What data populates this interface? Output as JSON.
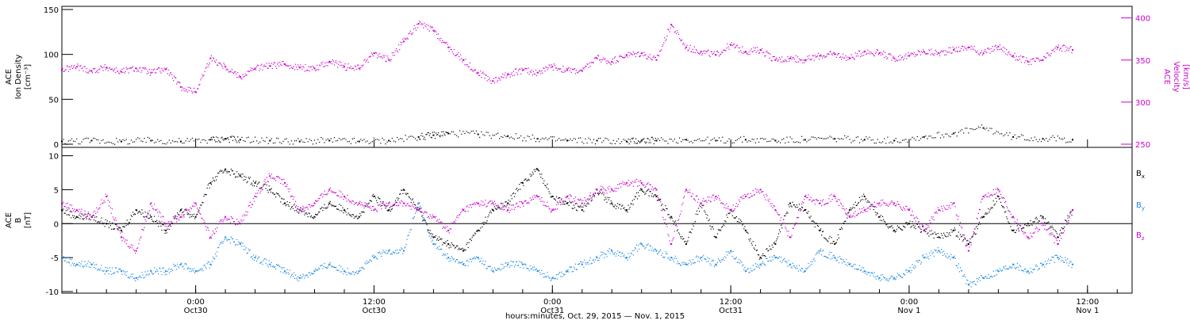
{
  "colors": {
    "axis": "#000000",
    "density": "#000000",
    "velocity": "#cc00cc",
    "bx": "#000000",
    "by": "#1e88e5",
    "bz": "#cc00cc"
  },
  "chart_data": [
    {
      "panel": "top",
      "type": "scatter",
      "time_range": [
        "2015-10-29 15:00",
        "2015-11-01 15:00"
      ],
      "left_axis": {
        "label_lines": [
          "ACE",
          "Ion Density",
          "[cm⁻³]"
        ],
        "ylim": [
          0,
          150
        ],
        "ticks": [
          "0",
          "50",
          "100",
          "150"
        ]
      },
      "right_axis": {
        "label_lines": [
          "ACE",
          "Velocity",
          "[km/s]"
        ],
        "ylim": [
          250,
          410
        ],
        "ticks": [
          "250",
          "300",
          "350",
          "400"
        ]
      },
      "series": [
        {
          "key": "density",
          "axis": "left",
          "x_hours": [
            0,
            2,
            4,
            6,
            8,
            10,
            11,
            12,
            14,
            16,
            18,
            20,
            22,
            24,
            25,
            26,
            28,
            30,
            32,
            34,
            36,
            38,
            39,
            40,
            42,
            44,
            46,
            48,
            50,
            52,
            54,
            56,
            58,
            60,
            62,
            64,
            66,
            68
          ],
          "values": [
            3,
            4,
            3,
            4,
            3,
            5,
            6,
            5,
            4,
            3,
            4,
            3,
            4,
            8,
            10,
            12,
            11,
            9,
            6,
            4,
            4,
            3,
            4,
            4,
            5,
            4,
            5,
            4,
            5,
            6,
            5,
            4,
            8,
            12,
            18,
            8,
            6,
            5
          ]
        },
        {
          "key": "velocity",
          "axis": "right",
          "x_hours": [
            0,
            1,
            2,
            3,
            4,
            5,
            6,
            7,
            8,
            9,
            10,
            11,
            12,
            13,
            14,
            15,
            16,
            17,
            18,
            19,
            20,
            21,
            22,
            23,
            24,
            25,
            26,
            27,
            28,
            29,
            30,
            31,
            32,
            33,
            34,
            35,
            36,
            37,
            38,
            39,
            40,
            41,
            42,
            43,
            44,
            45,
            46,
            47,
            48,
            49,
            50,
            51,
            52,
            53,
            54,
            55,
            56,
            57,
            58,
            59,
            60,
            61,
            62,
            63,
            64,
            65,
            66,
            67,
            68
          ],
          "values": [
            338,
            342,
            337,
            341,
            336,
            340,
            335,
            339,
            318,
            312,
            352,
            342,
            330,
            340,
            343,
            345,
            341,
            340,
            348,
            342,
            340,
            358,
            350,
            372,
            393,
            385,
            365,
            350,
            335,
            325,
            333,
            338,
            335,
            342,
            338,
            337,
            352,
            348,
            356,
            358,
            350,
            392,
            365,
            360,
            356,
            368,
            360,
            362,
            350,
            352,
            350,
            355,
            357,
            352,
            360,
            358,
            352,
            355,
            360,
            358,
            362,
            365,
            358,
            366,
            355,
            348,
            350,
            365,
            362
          ]
        }
      ]
    },
    {
      "panel": "bottom",
      "type": "scatter",
      "left_axis": {
        "label_lines": [
          "ACE",
          "B",
          "[nT]"
        ],
        "ylim": [
          -10,
          11
        ],
        "ticks": [
          "-10",
          "-5",
          "0",
          "5",
          "10"
        ]
      },
      "x_ticks": [
        {
          "hours": 9,
          "time": "0:00",
          "date": "Oct30"
        },
        {
          "hours": 21,
          "time": "12:00",
          "date": "Oct30"
        },
        {
          "hours": 33,
          "time": "0:00",
          "date": "Oct31"
        },
        {
          "hours": 45,
          "time": "12:00",
          "date": "Oct31"
        },
        {
          "hours": 57,
          "time": "0:00",
          "date": "Nov 1"
        },
        {
          "hours": 69,
          "time": "12:00",
          "date": "Nov 1"
        }
      ],
      "xlabel": "hours:minutes, Oct. 29, 2015 — Nov. 1, 2015",
      "legend": [
        "B",
        "B",
        "B"
      ],
      "legend_subscripts": [
        "x",
        "y",
        "z"
      ],
      "series": [
        {
          "key": "bx",
          "x_hours": [
            0,
            1,
            2,
            3,
            4,
            5,
            6,
            7,
            8,
            9,
            10,
            11,
            12,
            13,
            14,
            15,
            16,
            17,
            18,
            19,
            20,
            21,
            22,
            23,
            24,
            25,
            26,
            27,
            28,
            29,
            30,
            31,
            32,
            33,
            34,
            35,
            36,
            37,
            38,
            39,
            40,
            41,
            42,
            43,
            44,
            45,
            46,
            47,
            48,
            49,
            50,
            51,
            52,
            53,
            54,
            55,
            56,
            57,
            58,
            59,
            60,
            61,
            62,
            63,
            64,
            65,
            66,
            67,
            68
          ],
          "values": [
            2,
            1,
            1,
            0,
            -1,
            2,
            1,
            -1,
            2,
            1,
            6,
            8,
            7,
            6,
            5,
            3,
            2,
            1,
            3,
            2,
            1,
            4,
            2,
            5,
            2,
            -2,
            -3,
            -4,
            -1,
            2,
            3,
            6,
            8,
            4,
            3,
            2,
            5,
            3,
            2,
            5,
            4,
            1,
            -3,
            3,
            -2,
            2,
            -1,
            -5,
            -3,
            3,
            2,
            -1,
            -3,
            2,
            4,
            1,
            -1,
            0,
            -1,
            -2,
            -1,
            -3,
            1,
            4,
            -1,
            0,
            1,
            -2,
            2
          ]
        },
        {
          "key": "by",
          "x_hours": [
            0,
            1,
            2,
            3,
            4,
            5,
            6,
            7,
            8,
            9,
            10,
            11,
            12,
            13,
            14,
            15,
            16,
            17,
            18,
            19,
            20,
            21,
            22,
            23,
            24,
            25,
            26,
            27,
            28,
            29,
            30,
            31,
            32,
            33,
            34,
            35,
            36,
            37,
            38,
            39,
            40,
            41,
            42,
            43,
            44,
            45,
            46,
            47,
            48,
            49,
            50,
            51,
            52,
            53,
            54,
            55,
            56,
            57,
            58,
            59,
            60,
            61,
            62,
            63,
            64,
            65,
            66,
            67,
            68
          ],
          "values": [
            -5,
            -6,
            -6,
            -7,
            -7,
            -8,
            -7,
            -7,
            -6,
            -7,
            -6,
            -2,
            -3,
            -5,
            -6,
            -7,
            -8,
            -7,
            -6,
            -7,
            -7,
            -5,
            -4,
            -4,
            3,
            -3,
            -5,
            -6,
            -5,
            -7,
            -6,
            -6,
            -7,
            -8,
            -7,
            -6,
            -5,
            -4,
            -5,
            -3,
            -4,
            -5,
            -6,
            -5,
            -6,
            -4,
            -7,
            -6,
            -5,
            -6,
            -7,
            -4,
            -5,
            -6,
            -7,
            -8,
            -8,
            -7,
            -5,
            -4,
            -5,
            -9,
            -8,
            -7,
            -6,
            -7,
            -6,
            -5,
            -6
          ]
        },
        {
          "key": "bz",
          "x_hours": [
            0,
            1,
            2,
            3,
            4,
            5,
            6,
            7,
            8,
            9,
            10,
            11,
            12,
            13,
            14,
            15,
            16,
            17,
            18,
            19,
            20,
            21,
            22,
            23,
            24,
            25,
            26,
            27,
            28,
            29,
            30,
            31,
            32,
            33,
            34,
            35,
            36,
            37,
            38,
            39,
            40,
            41,
            42,
            43,
            44,
            45,
            46,
            47,
            48,
            49,
            50,
            51,
            52,
            53,
            54,
            55,
            56,
            57,
            58,
            59,
            60,
            61,
            62,
            63,
            64,
            65,
            66,
            67,
            68
          ],
          "values": [
            3,
            2,
            1,
            4,
            -2,
            -4,
            3,
            0,
            1,
            3,
            -2,
            1,
            0,
            4,
            7,
            6,
            2,
            3,
            5,
            4,
            3,
            2,
            3,
            3,
            2,
            1,
            -1,
            2,
            3,
            3,
            2,
            3,
            4,
            2,
            4,
            3,
            5,
            5,
            6,
            6,
            5,
            -3,
            5,
            3,
            4,
            2,
            4,
            5,
            2,
            -2,
            4,
            3,
            4,
            1,
            2,
            3,
            3,
            2,
            -1,
            2,
            3,
            -4,
            4,
            5,
            1,
            -2,
            0,
            -3,
            2
          ]
        }
      ]
    }
  ]
}
